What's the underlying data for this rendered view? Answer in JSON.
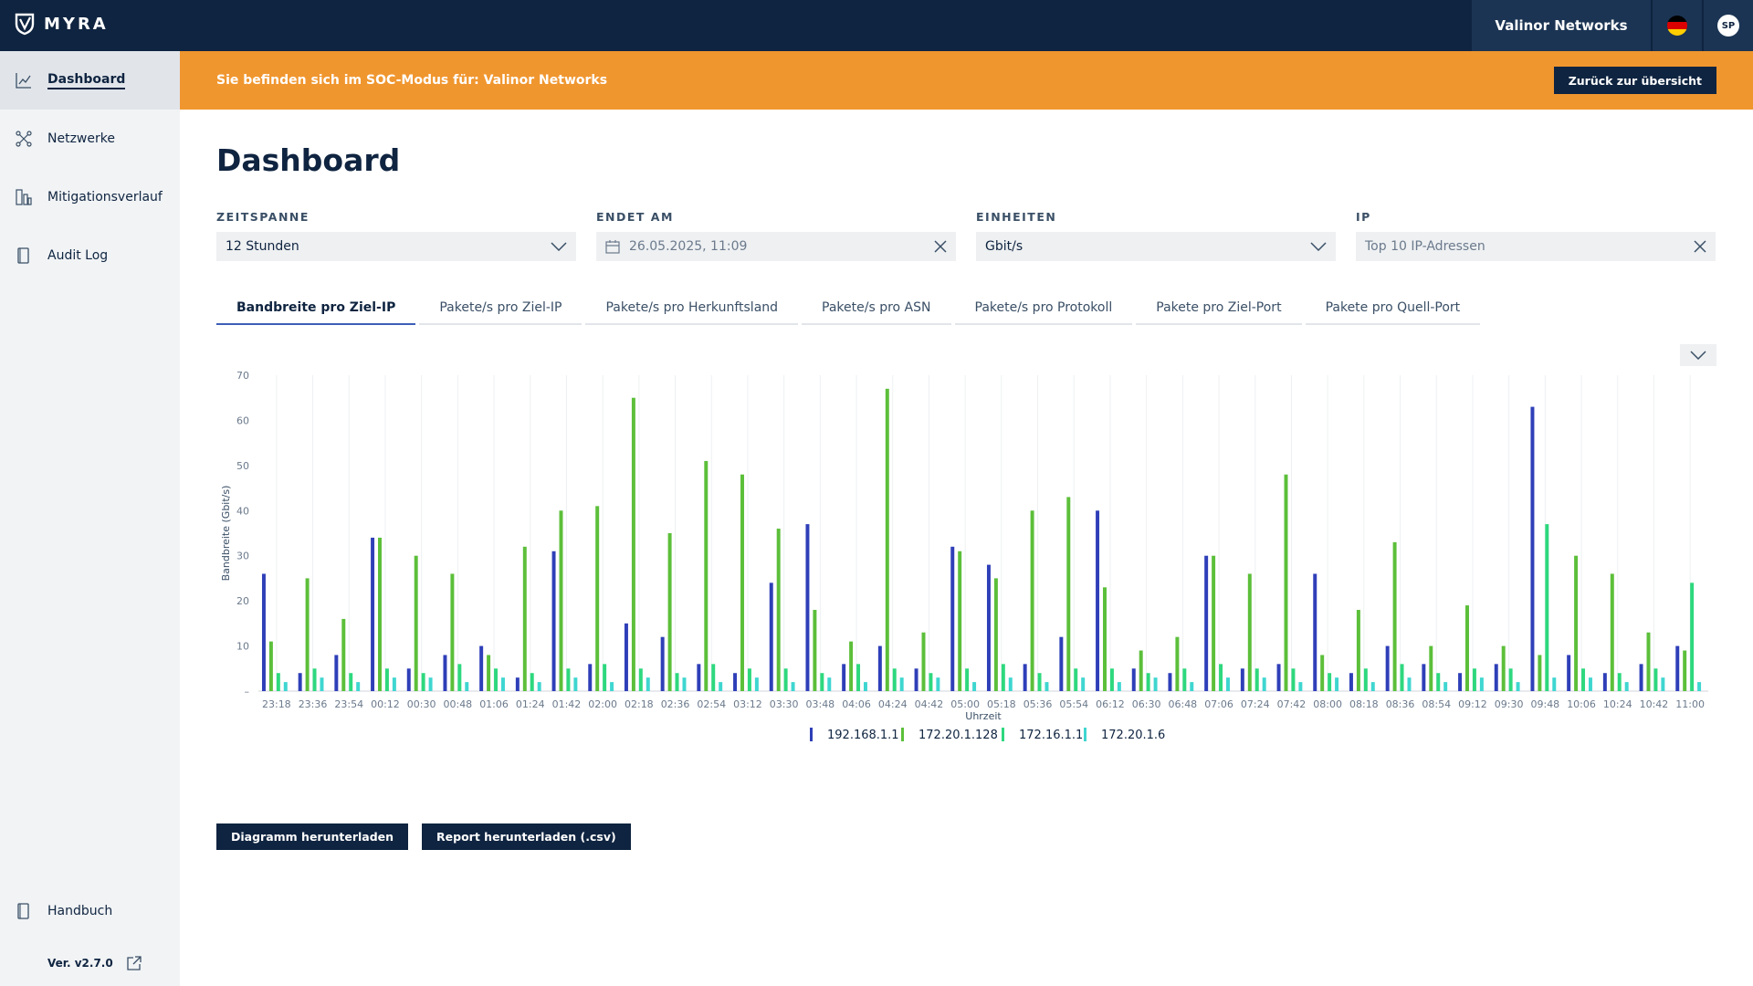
{
  "app": {
    "brand": "MYRA"
  },
  "header": {
    "tenant": "Valinor Networks",
    "language_flag": "de-flag-icon",
    "avatar_initials": "SP"
  },
  "sidebar": {
    "items": [
      {
        "label": "Dashboard",
        "icon": "line-chart-icon",
        "active": true
      },
      {
        "label": "Netzwerke",
        "icon": "network-icon",
        "active": false
      },
      {
        "label": "Mitigationsverlauf",
        "icon": "history-icon",
        "active": false
      },
      {
        "label": "Audit Log",
        "icon": "document-icon",
        "active": false
      }
    ],
    "manual_label": "Handbuch",
    "version": "Ver. v2.7.0"
  },
  "banner": {
    "text": "Sie befinden sich im SOC-Modus für: Valinor Networks",
    "back_button": "Zurück zur übersicht",
    "color": "#f0962f"
  },
  "page": {
    "title": "Dashboard"
  },
  "filters": {
    "timespan": {
      "label": "ZEITSPANNE",
      "value": "12 Stunden"
    },
    "ends_at": {
      "label": "ENDET AM",
      "value": "26.05.2025, 11:09"
    },
    "units": {
      "label": "EINHEITEN",
      "value": "Gbit/s"
    },
    "ip": {
      "label": "IP",
      "value": "Top 10 IP-Adressen"
    }
  },
  "tabs": [
    {
      "label": "Bandbreite pro Ziel-IP",
      "active": true
    },
    {
      "label": "Pakete/s pro Ziel-IP",
      "active": false
    },
    {
      "label": "Pakete/s pro Herkunftsland",
      "active": false
    },
    {
      "label": "Pakete/s pro ASN",
      "active": false
    },
    {
      "label": "Pakete/s pro Protokoll",
      "active": false
    },
    {
      "label": "Pakete pro Ziel-Port",
      "active": false
    },
    {
      "label": "Pakete pro Quell-Port",
      "active": false
    }
  ],
  "actions": {
    "download_chart": "Diagramm herunterladen",
    "download_report": "Report herunterladen (.csv)"
  },
  "chart_data": {
    "type": "bar",
    "ylabel": "Bandbreite (Gbit/s)",
    "xlabel": "Uhrzeit",
    "ylim": [
      0,
      70
    ],
    "yticks": [
      "–",
      "10",
      "20",
      "30",
      "40",
      "50",
      "60",
      "70"
    ],
    "grid": true,
    "legend_position": "bottom-center",
    "categories": [
      "23:18",
      "23:36",
      "23:54",
      "00:12",
      "00:30",
      "00:48",
      "01:06",
      "01:24",
      "01:42",
      "02:00",
      "02:18",
      "02:36",
      "02:54",
      "03:12",
      "03:30",
      "03:48",
      "04:06",
      "04:24",
      "04:42",
      "05:00",
      "05:18",
      "05:36",
      "05:54",
      "06:12",
      "06:30",
      "06:48",
      "07:06",
      "07:24",
      "07:42",
      "08:00",
      "08:18",
      "08:36",
      "08:54",
      "09:12",
      "09:30",
      "09:48",
      "10:06",
      "10:24",
      "10:42",
      "11:00"
    ],
    "series": [
      {
        "name": "192.168.1.1",
        "color": "#2f3fb8",
        "values": [
          26,
          4,
          8,
          34,
          5,
          8,
          10,
          3,
          31,
          6,
          15,
          12,
          6,
          4,
          24,
          37,
          6,
          10,
          5,
          32,
          28,
          6,
          12,
          40,
          5,
          4,
          30,
          5,
          6,
          26,
          4,
          10,
          6,
          4,
          6,
          63,
          8,
          4,
          6,
          10
        ]
      },
      {
        "name": "172.20.1.128",
        "color": "#5cbf3a",
        "values": [
          11,
          25,
          16,
          34,
          30,
          26,
          8,
          32,
          40,
          41,
          65,
          35,
          51,
          48,
          36,
          18,
          11,
          67,
          13,
          31,
          25,
          40,
          43,
          23,
          9,
          12,
          30,
          26,
          48,
          8,
          18,
          33,
          10,
          19,
          10,
          8,
          30,
          26,
          13,
          9
        ]
      },
      {
        "name": "172.16.1.1",
        "color": "#2ed87e",
        "values": [
          4,
          5,
          4,
          5,
          4,
          6,
          5,
          4,
          5,
          6,
          5,
          4,
          6,
          5,
          5,
          4,
          6,
          5,
          4,
          5,
          6,
          4,
          5,
          5,
          4,
          5,
          6,
          5,
          5,
          4,
          5,
          6,
          4,
          5,
          5,
          37,
          5,
          4,
          5,
          24
        ]
      },
      {
        "name": "172.20.1.6",
        "color": "#3fd6d0",
        "values": [
          2,
          3,
          2,
          3,
          3,
          2,
          3,
          2,
          3,
          2,
          3,
          3,
          2,
          3,
          2,
          3,
          2,
          3,
          3,
          2,
          3,
          2,
          3,
          2,
          3,
          2,
          3,
          3,
          2,
          3,
          2,
          3,
          2,
          3,
          2,
          3,
          3,
          2,
          3,
          2
        ]
      }
    ]
  }
}
